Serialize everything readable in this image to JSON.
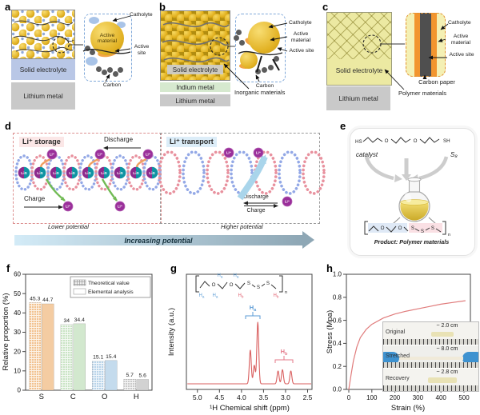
{
  "panels": {
    "a": {
      "letter": "a",
      "electrolyte": "Solid electrolyte",
      "anode": "Lithium metal",
      "active_material": "Active material",
      "catholyte": "Catholyte",
      "active_site": "Active site",
      "carbon": "Carbon"
    },
    "b": {
      "letter": "b",
      "electrolyte": "Solid electrolyte",
      "indium": "Indium metal",
      "anode": "Lithium metal",
      "catholyte": "Catholyte",
      "active_material": "Active material",
      "active_site": "Active site",
      "carbon": "Carbon",
      "inorganic": "Inorganic materials"
    },
    "c": {
      "letter": "c",
      "electrolyte": "Solid electrolyte",
      "anode": "Lithium metal",
      "catholyte": "Catholyte",
      "active_material": "Active material",
      "active_site": "Active site",
      "carbon_paper": "Carbon paper",
      "polymer": "Polymer materials"
    },
    "d": {
      "letter": "d",
      "storage": "Li⁺ storage",
      "transport": "Li⁺ transport",
      "discharge": "Discharge",
      "charge": "Charge",
      "li_ion": "Li⁺",
      "lis": "LiS",
      "lower": "Lower potential",
      "higher": "Higher potential",
      "increasing": "Increasing potential"
    },
    "e": {
      "letter": "e",
      "hs": "HS",
      "o": "O",
      "sh": "SH",
      "catalyst": "catalyst",
      "s8": "S₈",
      "s": "S",
      "n": "n",
      "product": "Product: Polymer materials"
    },
    "f": {
      "letter": "f"
    },
    "g": {
      "letter": "g",
      "h": "H",
      "a": "a",
      "b": "b",
      "o": "O",
      "s": "S",
      "n": "n"
    },
    "h": {
      "letter": "h",
      "rows": [
        {
          "label": "Original",
          "length": "~ 2.0 cm"
        },
        {
          "label": "Stretched",
          "length": "~ 8.0 cm"
        },
        {
          "label": "Recovery",
          "length": "~ 2.8 cm"
        }
      ]
    }
  },
  "colors": {
    "gold": "#e2b224",
    "catholyte_blue": "#a9c4e8",
    "electrolyte_blue": "#b9c7e6",
    "metal_gray": "#c9c9c9",
    "indium_green": "#d6e9cf",
    "polymer_yellow": "#ece9a2",
    "carbon_dark": "#4f4f4f",
    "active_site_orange": "#f2952f",
    "ion_purple": "#9a2f9a",
    "lis_teal": "#0f93a3",
    "helix_pink": "#e8919e",
    "helix_blue": "#93a8e6",
    "transport_arrow_blue": "#a9d5eb",
    "nmr_red": "#d95f5f",
    "stress_red": "#e07b7b"
  },
  "chart_data": [
    {
      "id": "f",
      "type": "bar",
      "categories": [
        "S",
        "C",
        "O",
        "H"
      ],
      "series": [
        {
          "name": "Theoretical value",
          "values": [
            45.3,
            34,
            15.1,
            5.7
          ]
        },
        {
          "name": "Elemental analysis",
          "values": [
            44.7,
            34.4,
            15.4,
            5.6
          ]
        }
      ],
      "value_labels": [
        [
          "45.3",
          "44.7"
        ],
        [
          "34",
          "34.4"
        ],
        [
          "15.1",
          "15.4"
        ],
        [
          "5.7",
          "5.6"
        ]
      ],
      "ylabel": "Relative proportion (%)",
      "ylim": [
        0,
        60
      ],
      "yticks": [
        0,
        10,
        20,
        30,
        40,
        50,
        60
      ],
      "bar_colors": [
        "#f2c18e",
        "#c9e3c4",
        "#b7d3e9",
        "#c9c9c9"
      ],
      "grid": false,
      "legend_position": "top-right"
    },
    {
      "id": "g",
      "type": "line",
      "subtype": "nmr-spectrum",
      "xlabel": "¹H Chemical shift (ppm)",
      "ylabel": "Intensity (a.u.)",
      "xlim": [
        5.25,
        2.4
      ],
      "x_reversed": true,
      "xticks": [
        "5.0",
        "4.5",
        "4.0",
        "3.5",
        "3.0",
        "2.5"
      ],
      "peaks_ppm_height": [
        [
          3.8,
          0.55
        ],
        [
          3.71,
          0.3
        ],
        [
          3.63,
          1.0
        ],
        [
          3.17,
          0.21
        ],
        [
          3.07,
          0.23
        ],
        [
          2.88,
          0.21
        ]
      ],
      "annotations": [
        "Ha",
        "Hb"
      ],
      "line_color": "#d95f5f"
    },
    {
      "id": "h",
      "type": "line",
      "xlabel": "Strain (%)",
      "ylabel": "Stress (Mpa)",
      "xlim": [
        0,
        550
      ],
      "ylim": [
        0,
        1
      ],
      "xticks": [
        0,
        100,
        200,
        300,
        400,
        500
      ],
      "yticks": [
        "0.0",
        "0.2",
        "0.4",
        "0.6",
        "0.8",
        "1.0"
      ],
      "points": [
        [
          0,
          0
        ],
        [
          10,
          0.13
        ],
        [
          20,
          0.25
        ],
        [
          35,
          0.37
        ],
        [
          50,
          0.45
        ],
        [
          75,
          0.52
        ],
        [
          100,
          0.565
        ],
        [
          150,
          0.62
        ],
        [
          200,
          0.655
        ],
        [
          250,
          0.68
        ],
        [
          300,
          0.7
        ],
        [
          350,
          0.72
        ],
        [
          400,
          0.74
        ],
        [
          450,
          0.755
        ],
        [
          505,
          0.77
        ]
      ],
      "line_color": "#e07b7b"
    }
  ]
}
